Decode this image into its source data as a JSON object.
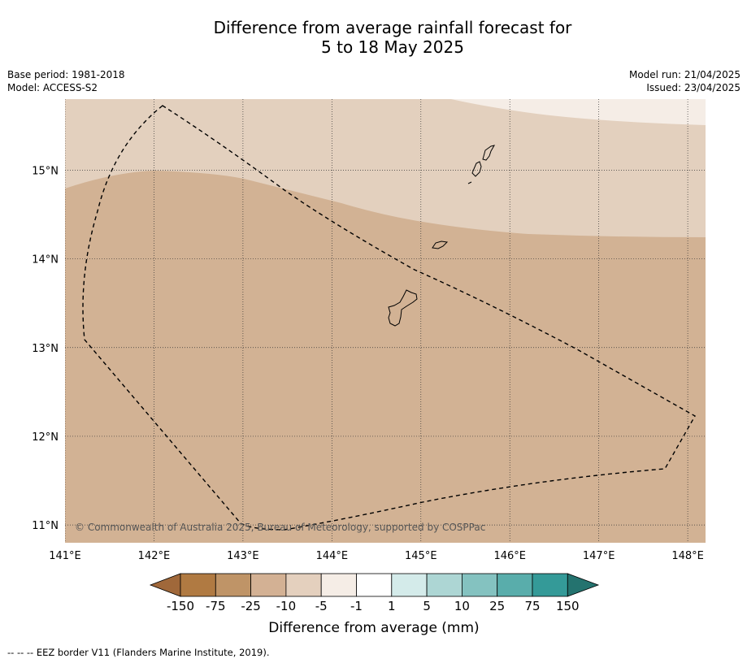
{
  "title_line1": "Difference from average rainfall forecast for",
  "title_line2": "5 to 18 May 2025",
  "meta_left": {
    "base_period": "Base period: 1981-2018",
    "model": "Model: ACCESS-S2"
  },
  "meta_right": {
    "model_run": "Model run: 21/04/2025",
    "issued": "Issued: 23/04/2025"
  },
  "map": {
    "lon_range": [
      141,
      148.2
    ],
    "lat_range": [
      10.8,
      15.8
    ],
    "lon_ticks": [
      141,
      142,
      143,
      144,
      145,
      146,
      147,
      148
    ],
    "lon_tick_labels": [
      "141°E",
      "142°E",
      "143°E",
      "144°E",
      "145°E",
      "146°E",
      "147°E",
      "148°E"
    ],
    "lat_ticks": [
      11,
      12,
      13,
      14,
      15
    ],
    "lat_tick_labels": [
      "11°N",
      "12°N",
      "13°N",
      "14°N",
      "15°N"
    ],
    "copyright": "© Commonwealth of Australia 2025, Bureau of Meteorology, supported by COSPPac"
  },
  "colorbar": {
    "title": "Difference from average (mm)",
    "labels": [
      "-150",
      "-75",
      "-25",
      "-10",
      "-5",
      "-1",
      "1",
      "5",
      "10",
      "25",
      "75",
      "150"
    ],
    "colors": [
      "#a0683a",
      "#b07a42",
      "#bf9467",
      "#d3b194",
      "#e4d0be",
      "#f5ede6",
      "#ffffff",
      "#d4ebea",
      "#add6d4",
      "#84c2c0",
      "#59adab",
      "#349a98",
      "#24736f"
    ]
  },
  "footer": "--  --  -- EEZ border V11 (Flanders Marine Institute, 2019)."
}
